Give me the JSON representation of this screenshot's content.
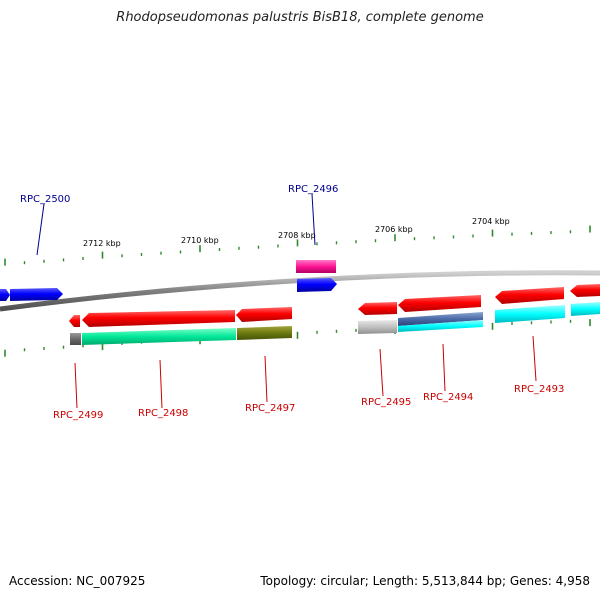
{
  "title": "Rhodopseudomonas palustris BisB18, complete genome",
  "footer": {
    "accession": "Accession: NC_007925",
    "summary": "Topology: circular; Length: 5,513,844 bp; Genes: 4,958"
  },
  "ruler_labels": [
    "2712 kbp",
    "2710 kbp",
    "2708 kbp",
    "2706 kbp",
    "2704 kbp"
  ],
  "colors": {
    "forward_label": "#00008b",
    "reverse_label": "#cc0000",
    "backbone": "#808080",
    "ticks": "#2e8b2e",
    "gene_forward": "#0000ff",
    "gene_reverse": "#ff0000"
  },
  "genes": [
    {
      "name": "RPC_2500",
      "strand": "+"
    },
    {
      "name": "RPC_2496",
      "strand": "+"
    },
    {
      "name": "RPC_2499",
      "strand": "-"
    },
    {
      "name": "RPC_2498",
      "strand": "-"
    },
    {
      "name": "RPC_2497",
      "strand": "-"
    },
    {
      "name": "RPC_2495",
      "strand": "-"
    },
    {
      "name": "RPC_2494",
      "strand": "-"
    },
    {
      "name": "RPC_2493",
      "strand": "-"
    }
  ]
}
